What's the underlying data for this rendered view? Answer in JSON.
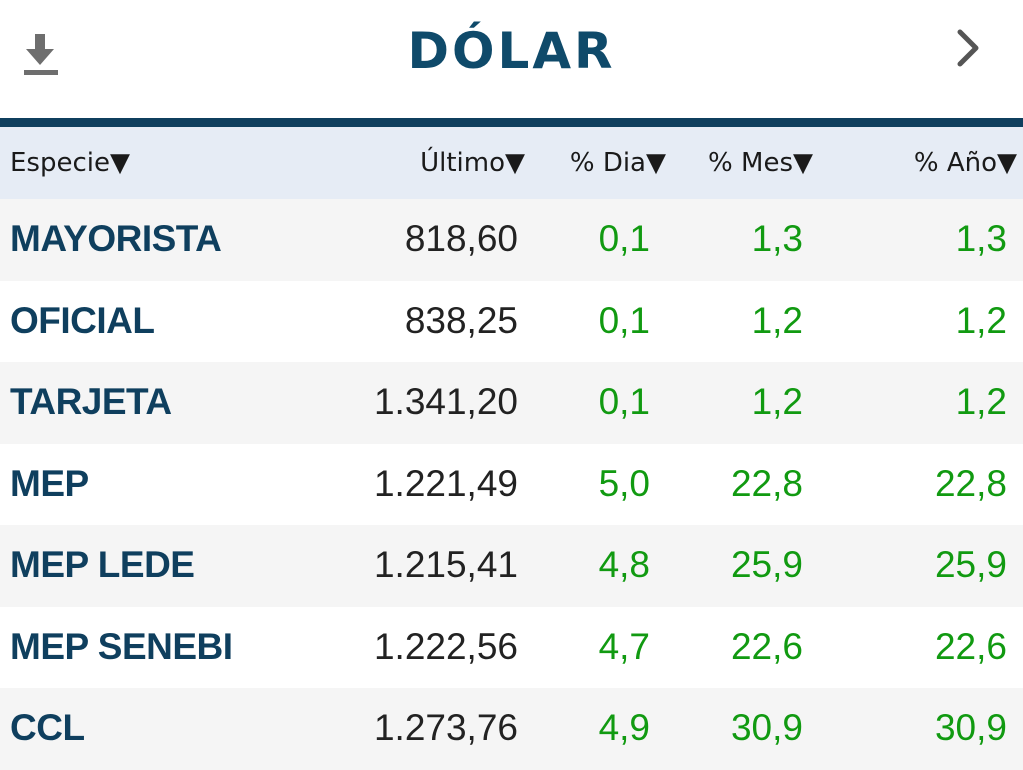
{
  "header": {
    "title": "DÓLAR",
    "download_icon": "download-icon",
    "next_icon": "chevron-right-icon"
  },
  "colors": {
    "title": "#0f4a6a",
    "rule": "#0f3f5e",
    "header_bg": "#e6ecf5",
    "positive": "#119a11",
    "name": "#0f3f5e"
  },
  "table": {
    "columns": {
      "especie": "Especie▼",
      "ultimo": "Último▼",
      "dia": "% Dia▼",
      "mes": "% Mes▼",
      "anio": "% Año▼"
    },
    "rows": [
      {
        "name": "MAYORISTA",
        "ultimo": "818,60",
        "dia": "0,1",
        "mes": "1,3",
        "anio": "1,3"
      },
      {
        "name": "OFICIAL",
        "ultimo": "838,25",
        "dia": "0,1",
        "mes": "1,2",
        "anio": "1,2"
      },
      {
        "name": "TARJETA",
        "ultimo": "1.341,20",
        "dia": "0,1",
        "mes": "1,2",
        "anio": "1,2"
      },
      {
        "name": "MEP",
        "ultimo": "1.221,49",
        "dia": "5,0",
        "mes": "22,8",
        "anio": "22,8"
      },
      {
        "name": "MEP LEDE",
        "ultimo": "1.215,41",
        "dia": "4,8",
        "mes": "25,9",
        "anio": "25,9"
      },
      {
        "name": "MEP SENEBI",
        "ultimo": "1.222,56",
        "dia": "4,7",
        "mes": "22,6",
        "anio": "22,6"
      },
      {
        "name": "CCL",
        "ultimo": "1.273,76",
        "dia": "4,9",
        "mes": "30,9",
        "anio": "30,9"
      }
    ]
  }
}
